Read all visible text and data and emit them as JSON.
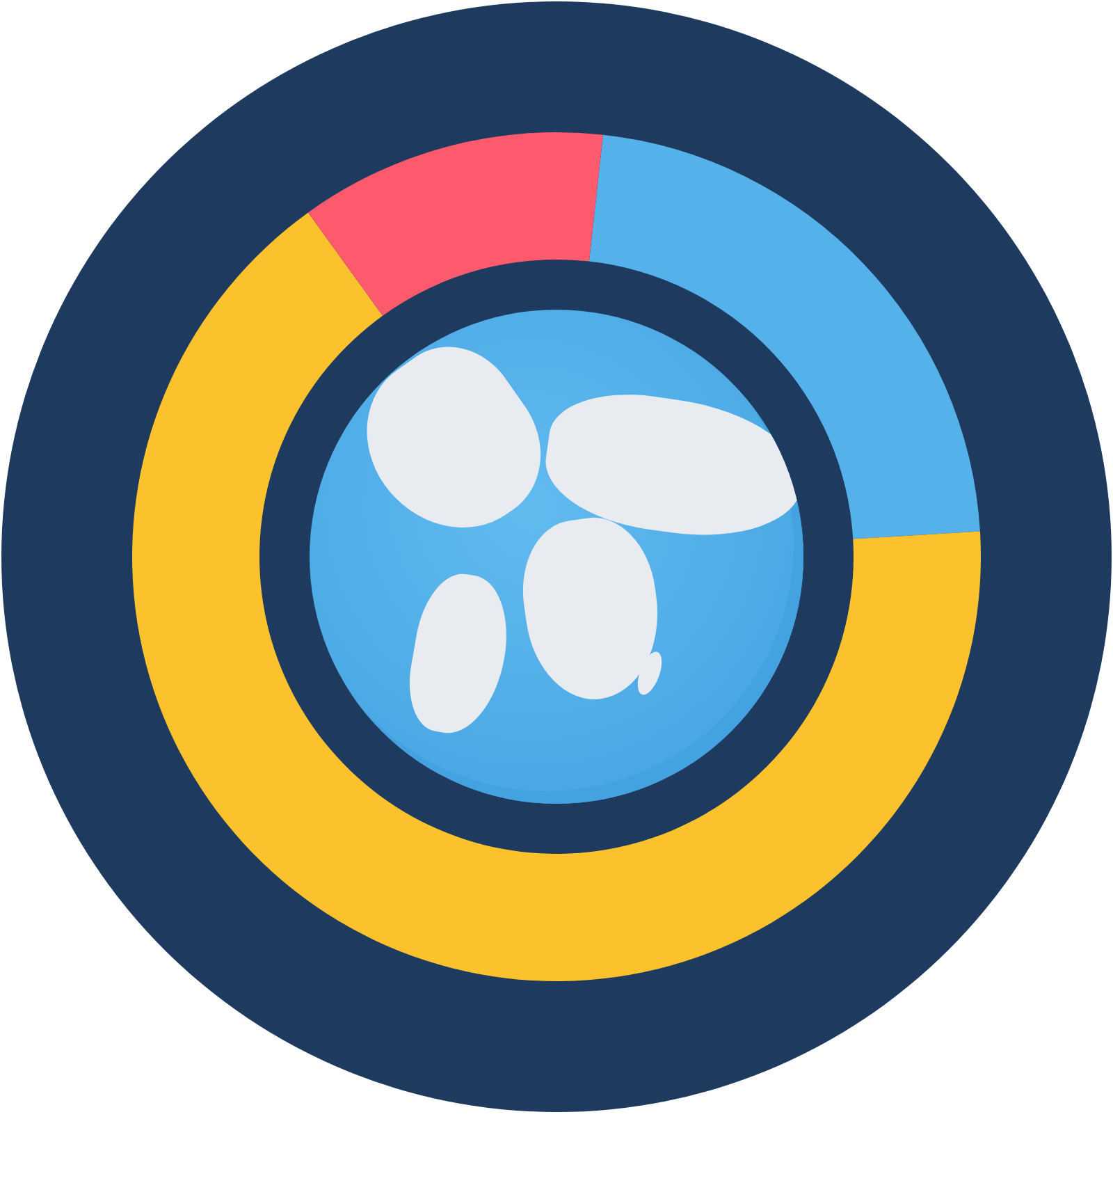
{
  "chart_data": {
    "type": "donut",
    "categories": [
      null,
      null,
      null
    ],
    "values": [
      22.3,
      66.0,
      11.7
    ],
    "colors": [
      "#55b1ea",
      "#fcc22d",
      "#fe5a6e"
    ]
  }
}
